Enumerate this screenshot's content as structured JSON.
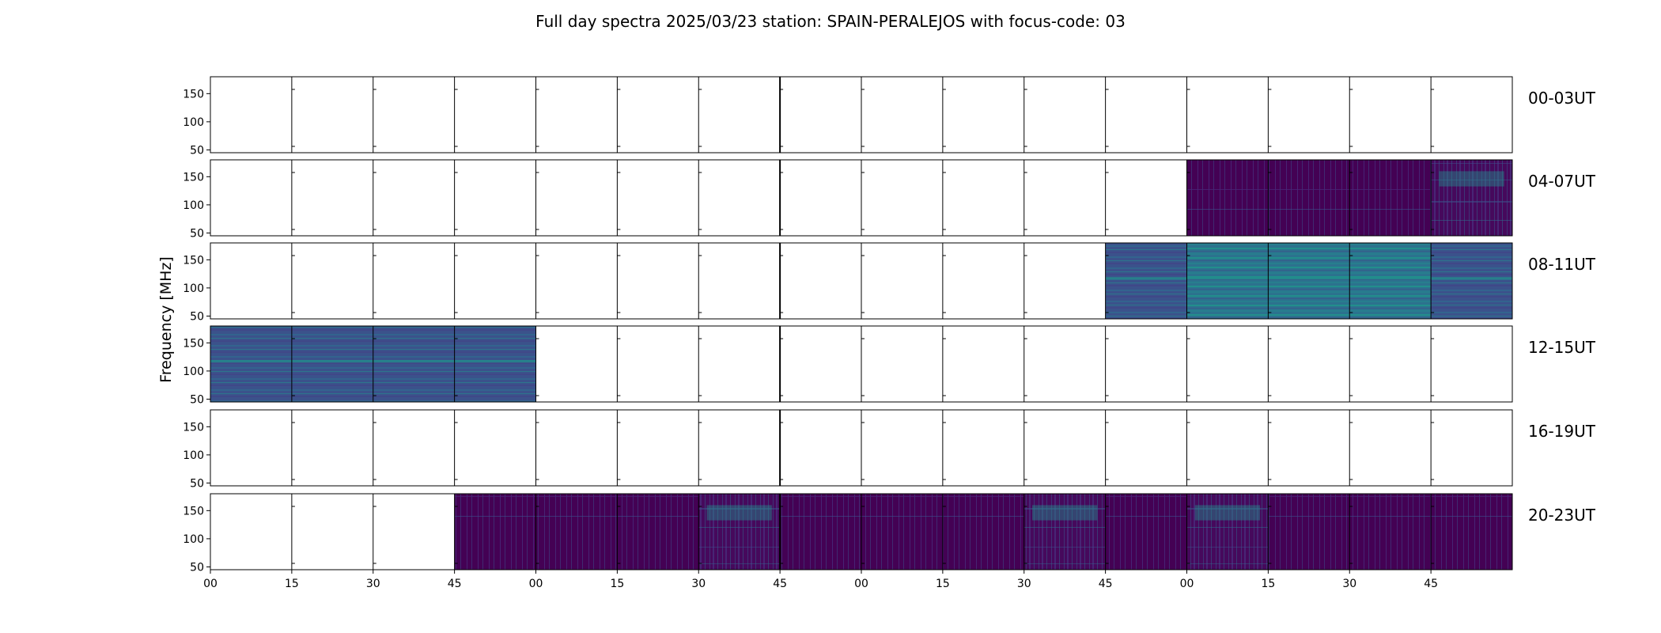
{
  "chart_data": {
    "type": "heatmap",
    "title": "Full day spectra 2025/03/23 station: SPAIN-PERALEJOS with focus-code: 03",
    "ylabel": "Frequency [MHz]",
    "ylim": [
      45,
      180
    ],
    "yticks": [
      50,
      100,
      150
    ],
    "xticks": [
      "00",
      "15",
      "30",
      "45",
      "00",
      "15",
      "30",
      "45",
      "00",
      "15",
      "30",
      "45",
      "00",
      "15",
      "30",
      "45"
    ],
    "rows": [
      {
        "label": "00-03UT",
        "data": [
          0,
          0,
          0,
          0,
          0,
          0,
          0,
          0,
          0,
          0,
          0,
          0,
          0,
          0,
          0,
          0
        ]
      },
      {
        "label": "04-07UT",
        "data": [
          0,
          0,
          0,
          0,
          0,
          0,
          0,
          0,
          0,
          0,
          0,
          0,
          1,
          1,
          1,
          2
        ]
      },
      {
        "label": "08-11UT",
        "data": [
          0,
          0,
          0,
          0,
          0,
          0,
          0,
          0,
          0,
          0,
          0,
          3,
          4,
          4,
          4,
          3
        ]
      },
      {
        "label": "12-15UT",
        "data": [
          3,
          3,
          3,
          3,
          0,
          0,
          0,
          0,
          0,
          0,
          0,
          0,
          0,
          0,
          0,
          0
        ]
      },
      {
        "label": "16-19UT",
        "data": [
          0,
          0,
          0,
          0,
          0,
          0,
          0,
          0,
          0,
          0,
          0,
          0,
          0,
          0,
          0,
          0
        ]
      },
      {
        "label": "20-23UT",
        "data": [
          0,
          0,
          0,
          1,
          1,
          1,
          2,
          1,
          1,
          1,
          2,
          1,
          2,
          1,
          1,
          1
        ]
      }
    ],
    "colormap": {
      "low": "#440154",
      "mid": "#3b528b",
      "high": "#21918c",
      "top": "#5ec962"
    }
  }
}
